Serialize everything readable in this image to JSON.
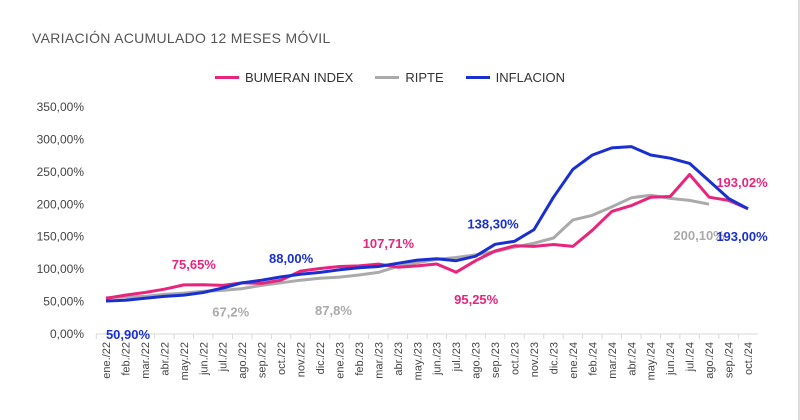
{
  "chart_data": {
    "type": "line",
    "title": "VARIACIÓN ACUMULADO 12 MESES MÓVIL",
    "legend_position": "top",
    "grid": false,
    "ylim": [
      0,
      350
    ],
    "y_ticks": [
      "0,00%",
      "50,00%",
      "100,00%",
      "150,00%",
      "200,00%",
      "250,00%",
      "300,00%",
      "350,00%"
    ],
    "categories": [
      "ene./22",
      "feb./22",
      "mar./22",
      "abr./22",
      "may./22",
      "jun./22",
      "jul./22",
      "ago./22",
      "sep./22",
      "oct./22",
      "nov./22",
      "dic./22",
      "ene./23",
      "feb./23",
      "mar./23",
      "abr./23",
      "may./23",
      "jun./23",
      "jul./23",
      "ago./23",
      "sep./23",
      "oct./23",
      "nov./23",
      "dic./23",
      "ene./24",
      "feb./24",
      "mar./24",
      "abr./24",
      "may./24",
      "jun./24",
      "jul./24",
      "ago./24",
      "sep./24",
      "oct./24"
    ],
    "series": [
      {
        "name": "BUMERAN INDEX",
        "color": "#e8247c",
        "values": [
          55,
          60,
          64,
          69,
          75.65,
          76,
          75,
          79,
          78,
          83,
          97,
          101,
          104,
          105,
          107.71,
          103,
          105,
          108,
          95.25,
          113,
          128,
          136,
          135,
          138,
          135,
          160,
          189,
          198,
          211,
          212,
          246,
          211,
          206,
          193.02
        ]
      },
      {
        "name": "RIPTE",
        "color": "#aaaaaa",
        "values": [
          56,
          57,
          58,
          61,
          63,
          66,
          67.2,
          70,
          75,
          79,
          83,
          86,
          87.8,
          91,
          95,
          104,
          110,
          115,
          118,
          122,
          127,
          134,
          140,
          148,
          176,
          183,
          196,
          210,
          214,
          209,
          206,
          200.1,
          null,
          null
        ]
      },
      {
        "name": "INFLACION",
        "color": "#1a2fd0",
        "values": [
          50.9,
          52,
          55,
          58,
          60,
          64,
          71,
          79,
          83,
          88,
          92,
          95,
          99,
          102,
          104,
          109,
          114,
          116,
          113,
          120,
          138.3,
          143,
          161,
          211,
          254,
          276,
          287,
          289,
          276,
          271,
          263,
          236,
          209,
          193
        ]
      }
    ],
    "annotations": [
      {
        "series": 2,
        "index": 0,
        "text": "50,90%"
      },
      {
        "series": 0,
        "index": 4,
        "text": "75,65%"
      },
      {
        "series": 1,
        "index": 6,
        "text": "67,2%"
      },
      {
        "series": 2,
        "index": 9,
        "text": "88,00%"
      },
      {
        "series": 0,
        "index": 14,
        "text": "107,71%"
      },
      {
        "series": 1,
        "index": 12,
        "text": "87,8%"
      },
      {
        "series": 0,
        "index": 18,
        "text": "95,25%"
      },
      {
        "series": 2,
        "index": 20,
        "text": "138,30%"
      },
      {
        "series": 1,
        "index": 31,
        "text": "200,10%"
      },
      {
        "series": 0,
        "index": 33,
        "text": "193,02%"
      },
      {
        "series": 2,
        "index": 33,
        "text": "193,00%"
      }
    ]
  }
}
